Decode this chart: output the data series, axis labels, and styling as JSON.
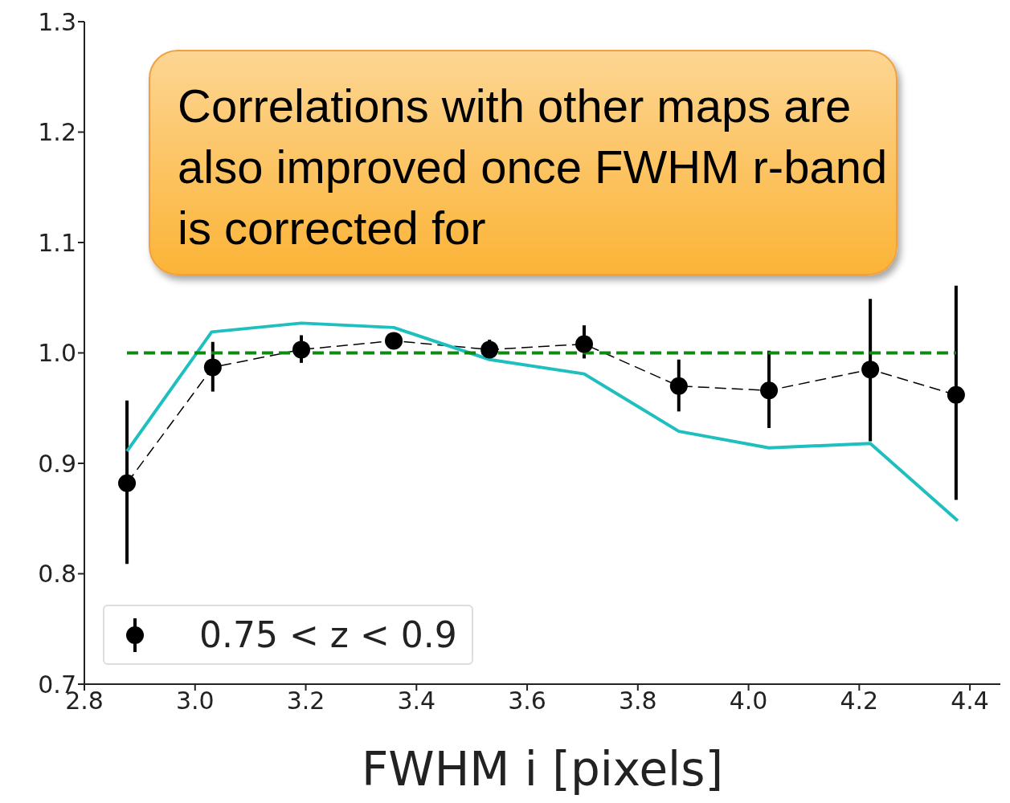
{
  "chart_data": {
    "type": "line",
    "xlabel": "FWHM i [pixels]",
    "xlim": [
      2.8,
      4.455
    ],
    "xticks": [
      {
        "value": 2.8,
        "label": "2.8"
      },
      {
        "value": 3.0,
        "label": "3.0"
      },
      {
        "value": 3.2,
        "label": "3.2"
      },
      {
        "value": 3.4,
        "label": "3.4"
      },
      {
        "value": 3.6,
        "label": "3.6"
      },
      {
        "value": 3.8,
        "label": "3.8"
      },
      {
        "value": 4.0,
        "label": "4.0"
      },
      {
        "value": 4.2,
        "label": "4.2"
      },
      {
        "value": 4.4,
        "label": "4.4"
      }
    ],
    "ylim": [
      0.7,
      1.3
    ],
    "yticks": [
      {
        "value": 0.7,
        "label": "0.7"
      },
      {
        "value": 0.8,
        "label": "0.8"
      },
      {
        "value": 0.9,
        "label": "0.9"
      },
      {
        "value": 1.0,
        "label": "1.0"
      },
      {
        "value": 1.1,
        "label": "1.1"
      },
      {
        "value": 1.2,
        "label": "1.2"
      },
      {
        "value": 1.3,
        "label": "1.3"
      }
    ],
    "grid": false,
    "legend": "bottom left",
    "annotations": [
      "Correlations with other maps are also improved once FWHM r-band is corrected for"
    ],
    "series": [
      {
        "name": "0.75 < z < 0.9",
        "color": "#000000",
        "line_style": "dashed",
        "marker": "circle",
        "x": [
          2.877,
          3.032,
          3.192,
          3.359,
          3.532,
          3.703,
          3.874,
          4.037,
          4.22,
          4.375
        ],
        "values": [
          0.882,
          0.987,
          1.003,
          1.011,
          1.003,
          1.008,
          0.97,
          0.966,
          0.985,
          0.962
        ],
        "errors": [
          [
            0.809,
            0.957
          ],
          [
            0.965,
            1.01
          ],
          [
            0.991,
            1.016
          ],
          [
            1.004,
            1.018
          ],
          [
            0.995,
            1.012
          ],
          [
            0.995,
            1.025
          ],
          [
            0.947,
            0.994
          ],
          [
            0.932,
            1.002
          ],
          [
            0.92,
            1.049
          ],
          [
            0.867,
            1.061
          ]
        ]
      },
      {
        "color": "#1fbfc0",
        "line_style": "solid",
        "marker": "none",
        "x": [
          2.877,
          3.03,
          3.192,
          3.359,
          3.532,
          3.703,
          3.874,
          4.037,
          4.22,
          4.378
        ],
        "values": [
          0.911,
          1.019,
          1.027,
          1.023,
          0.994,
          0.981,
          0.929,
          0.914,
          0.918,
          0.848
        ]
      },
      {
        "color": "#118811",
        "line_style": "dashed",
        "marker": "none",
        "x": [
          2.877,
          4.375
        ],
        "values": [
          1.0,
          1.0
        ]
      }
    ]
  }
}
